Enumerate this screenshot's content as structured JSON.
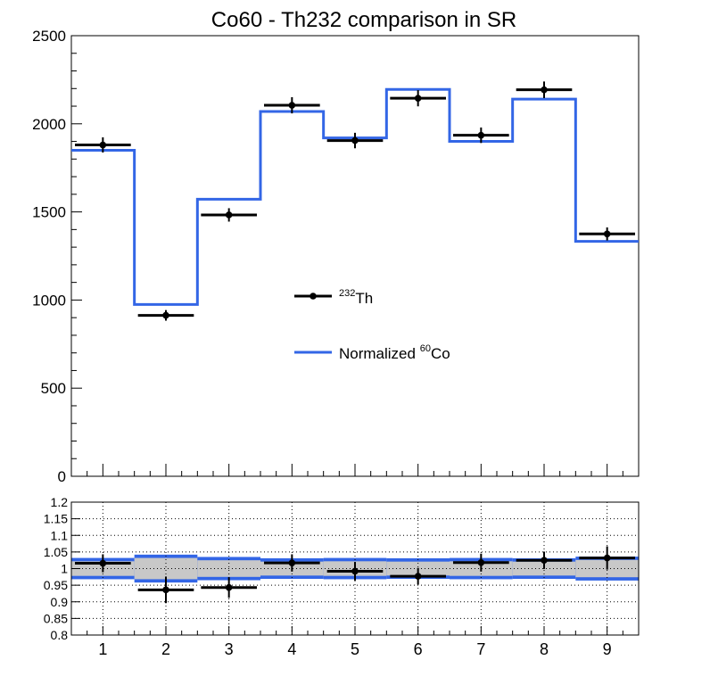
{
  "chart_data": {
    "title": "Co60 - Th232 comparison in SR",
    "colors": {
      "data": "#000000",
      "mc": "#3366e6",
      "stat_band": "#c8c8c8"
    },
    "panels": [
      {
        "name": "main",
        "type": "histogram",
        "x_range": [
          0.5,
          9.5
        ],
        "ylim": [
          0,
          2500
        ],
        "y_ticks": [
          0,
          500,
          1000,
          1500,
          2000,
          2500
        ],
        "y_tick_labels": [
          "0",
          "500",
          "1000",
          "1500",
          "2000",
          "2500"
        ],
        "grid": false,
        "legend": {
          "placement": "center",
          "entries": [
            {
              "series": "th232",
              "superscript": "232",
              "label": "Th"
            },
            {
              "series": "co60",
              "prefix": "Normalized ",
              "superscript": "60",
              "label": "Co"
            }
          ]
        },
        "series": [
          {
            "id": "th232",
            "type": "points",
            "x": [
              1,
              2,
              3,
              4,
              5,
              6,
              7,
              8,
              9
            ],
            "values": [
              1880,
              913,
              1483,
              2105,
              1905,
              2145,
              1935,
              2193,
              1375
            ],
            "errors": [
              43,
              30,
              38,
              46,
              44,
              46,
              44,
              47,
              37
            ]
          },
          {
            "id": "co60",
            "type": "step",
            "x": [
              1,
              2,
              3,
              4,
              5,
              6,
              7,
              8,
              9
            ],
            "values": [
              1850,
              975,
              1572,
              2070,
              1920,
              2195,
              1900,
              2140,
              1333
            ]
          }
        ]
      },
      {
        "name": "ratio",
        "type": "ratio",
        "x_range": [
          0.5,
          9.5
        ],
        "ylim": [
          0.8,
          1.2
        ],
        "y_ticks": [
          0.8,
          0.85,
          0.9,
          0.95,
          1.0,
          1.05,
          1.1,
          1.15,
          1.2
        ],
        "y_tick_labels": [
          "0.8",
          "0.85",
          "0.9",
          "0.95",
          "1",
          "1.05",
          "1.1",
          "1.15",
          "1.2"
        ],
        "x_ticks": [
          1,
          2,
          3,
          4,
          5,
          6,
          7,
          8,
          9
        ],
        "x_tick_labels": [
          "1",
          "2",
          "3",
          "4",
          "5",
          "6",
          "7",
          "8",
          "9"
        ],
        "grid": true,
        "series": [
          {
            "id": "ratio_points",
            "type": "points",
            "x": [
              1,
              2,
              3,
              4,
              5,
              6,
              7,
              8,
              9
            ],
            "values": [
              1.016,
              0.936,
              0.943,
              1.017,
              0.992,
              0.977,
              1.018,
              1.025,
              1.032
            ],
            "errors": [
              0.027,
              0.04,
              0.031,
              0.026,
              0.028,
              0.025,
              0.027,
              0.026,
              0.035
            ]
          },
          {
            "id": "band",
            "type": "band",
            "x": [
              1,
              2,
              3,
              4,
              5,
              6,
              7,
              8,
              9
            ],
            "half_width": [
              0.022,
              0.032,
              0.025,
              0.021,
              0.022,
              0.021,
              0.022,
              0.021,
              0.026
            ],
            "edge_width": 0.01
          }
        ]
      }
    ]
  }
}
